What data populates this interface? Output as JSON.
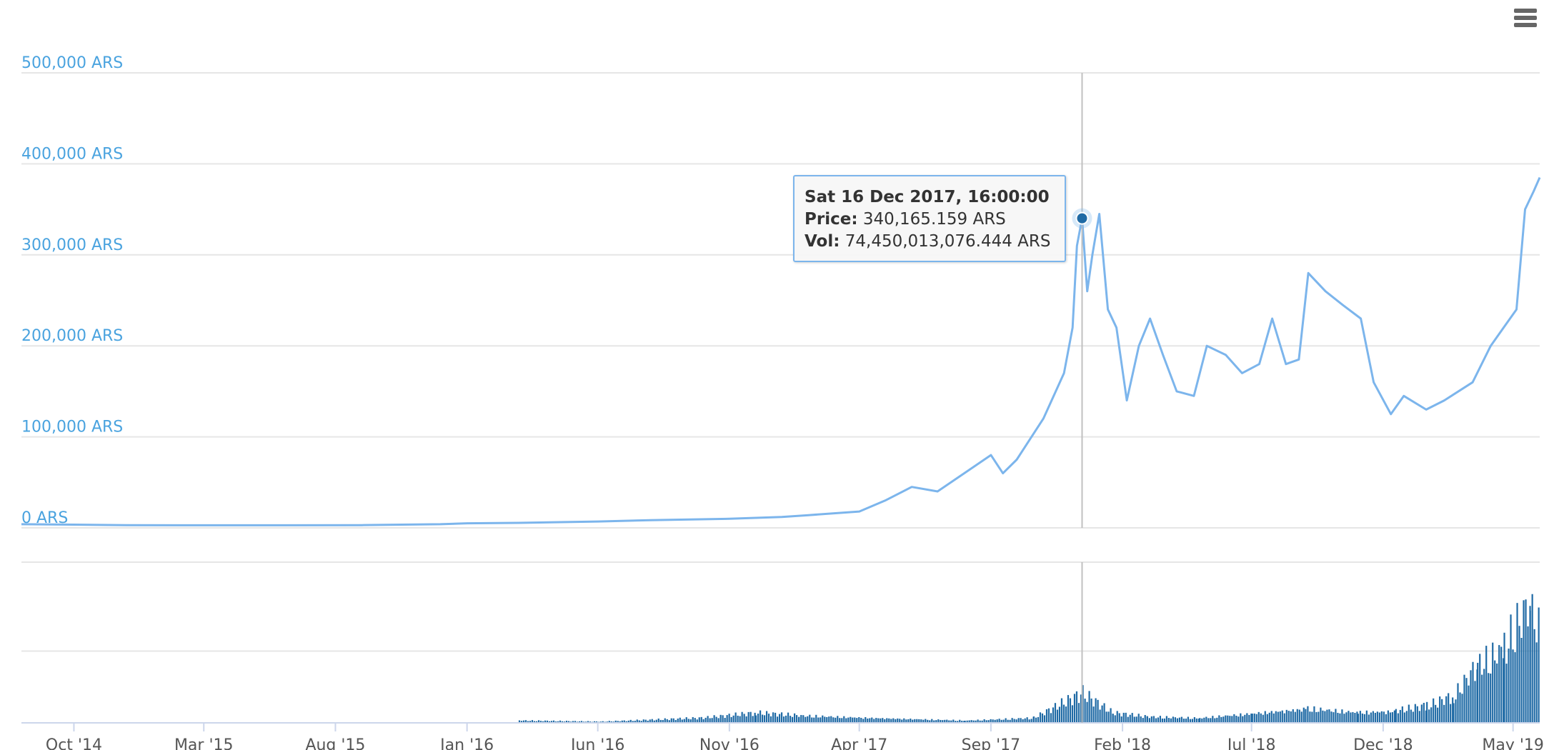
{
  "colors": {
    "line": "#7cb5ec",
    "volume": "#1f6aa5",
    "axis_label": "#4aa3df",
    "x_label": "#555555",
    "grid": "#e6e6e6",
    "crosshair": "#c0c0c0",
    "point": "#1f6aa5"
  },
  "menu": {
    "icon": "hamburger-menu-icon"
  },
  "tooltip": {
    "date": "Sat 16 Dec 2017, 16:00:00",
    "price_label": "Price:",
    "price_value": "340,165.159 ARS",
    "vol_label": "Vol:",
    "vol_value": "74,450,013,076.444 ARS"
  },
  "chart_data": {
    "type": "line",
    "ylim": [
      0,
      500000
    ],
    "y_ticks": [
      "0 ARS",
      "100,000 ARS",
      "200,000 ARS",
      "300,000 ARS",
      "400,000 ARS",
      "500,000 ARS"
    ],
    "x_ticks": [
      "Oct '14",
      "Mar '15",
      "Aug '15",
      "Jan '16",
      "Jun '16",
      "Nov '16",
      "Apr '17",
      "Sep '17",
      "Feb '18",
      "Jul '18",
      "Dec '18",
      "May '19"
    ],
    "xlim": [
      "2014-08-01",
      "2019-06-01"
    ],
    "price_series": {
      "name": "Price",
      "points": [
        [
          "2014-08-01",
          4000
        ],
        [
          "2014-10-01",
          3500
        ],
        [
          "2014-12-01",
          3000
        ],
        [
          "2015-03-01",
          2800
        ],
        [
          "2015-06-01",
          2800
        ],
        [
          "2015-09-01",
          3000
        ],
        [
          "2015-12-01",
          4000
        ],
        [
          "2016-01-01",
          5000
        ],
        [
          "2016-03-01",
          5500
        ],
        [
          "2016-06-01",
          7000
        ],
        [
          "2016-08-01",
          8500
        ],
        [
          "2016-11-01",
          10000
        ],
        [
          "2017-01-01",
          12000
        ],
        [
          "2017-02-01",
          14000
        ],
        [
          "2017-04-01",
          18000
        ],
        [
          "2017-05-01",
          30000
        ],
        [
          "2017-06-01",
          45000
        ],
        [
          "2017-07-01",
          40000
        ],
        [
          "2017-08-01",
          60000
        ],
        [
          "2017-09-01",
          80000
        ],
        [
          "2017-09-15",
          60000
        ],
        [
          "2017-10-01",
          75000
        ],
        [
          "2017-11-01",
          120000
        ],
        [
          "2017-11-25",
          170000
        ],
        [
          "2017-12-05",
          220000
        ],
        [
          "2017-12-10",
          310000
        ],
        [
          "2017-12-16",
          340165
        ],
        [
          "2017-12-22",
          260000
        ],
        [
          "2017-12-28",
          300000
        ],
        [
          "2018-01-05",
          345000
        ],
        [
          "2018-01-15",
          240000
        ],
        [
          "2018-01-25",
          220000
        ],
        [
          "2018-02-06",
          140000
        ],
        [
          "2018-02-20",
          200000
        ],
        [
          "2018-03-05",
          230000
        ],
        [
          "2018-03-20",
          190000
        ],
        [
          "2018-04-05",
          150000
        ],
        [
          "2018-04-25",
          145000
        ],
        [
          "2018-05-10",
          200000
        ],
        [
          "2018-06-01",
          190000
        ],
        [
          "2018-06-20",
          170000
        ],
        [
          "2018-07-10",
          180000
        ],
        [
          "2018-07-25",
          230000
        ],
        [
          "2018-08-10",
          180000
        ],
        [
          "2018-08-25",
          185000
        ],
        [
          "2018-09-05",
          280000
        ],
        [
          "2018-09-25",
          260000
        ],
        [
          "2018-10-15",
          245000
        ],
        [
          "2018-11-05",
          230000
        ],
        [
          "2018-11-20",
          160000
        ],
        [
          "2018-12-10",
          125000
        ],
        [
          "2018-12-25",
          145000
        ],
        [
          "2019-01-20",
          130000
        ],
        [
          "2019-02-10",
          140000
        ],
        [
          "2019-03-15",
          160000
        ],
        [
          "2019-04-05",
          200000
        ],
        [
          "2019-04-20",
          220000
        ],
        [
          "2019-05-05",
          240000
        ],
        [
          "2019-05-15",
          350000
        ],
        [
          "2019-05-25",
          370000
        ],
        [
          "2019-06-01",
          385000
        ]
      ]
    },
    "volume_series": {
      "name": "Vol",
      "points": [
        [
          "2016-03-01",
          0.02
        ],
        [
          "2016-06-01",
          0.01
        ],
        [
          "2016-10-01",
          0.04
        ],
        [
          "2016-12-01",
          0.08
        ],
        [
          "2017-01-20",
          0.06
        ],
        [
          "2017-08-01",
          0.02
        ],
        [
          "2017-10-20",
          0.04
        ],
        [
          "2017-12-16",
          0.24
        ],
        [
          "2018-01-20",
          0.08
        ],
        [
          "2018-03-01",
          0.05
        ],
        [
          "2018-05-01",
          0.04
        ],
        [
          "2018-07-01",
          0.08
        ],
        [
          "2018-09-01",
          0.12
        ],
        [
          "2018-11-01",
          0.09
        ],
        [
          "2018-12-15",
          0.1
        ],
        [
          "2019-01-20",
          0.14
        ],
        [
          "2019-02-20",
          0.22
        ],
        [
          "2019-03-20",
          0.48
        ],
        [
          "2019-04-20",
          0.62
        ],
        [
          "2019-05-20",
          1.0
        ],
        [
          "2019-06-01",
          0.8
        ]
      ]
    },
    "highlight": {
      "date": "2017-12-16",
      "price": 340165
    },
    "grid": true,
    "legend": "none"
  }
}
